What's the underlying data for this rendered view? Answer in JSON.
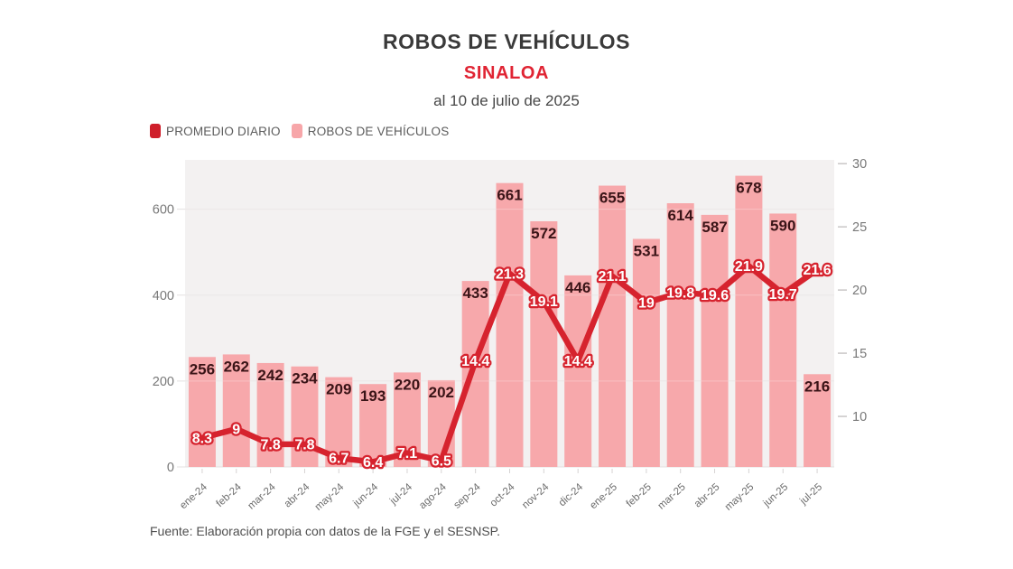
{
  "header": {
    "title": "ROBOS DE VEHÍCULOS",
    "subtitle": "SINALOA",
    "date_note": "al 10 de julio de 2025"
  },
  "legend": {
    "items": [
      {
        "label": "PROMEDIO DIARIO",
        "color": "#cf1f2b"
      },
      {
        "label": "ROBOS DE VEHÍCULOS",
        "color": "#f7a6a9"
      }
    ]
  },
  "footer": {
    "source": "Fuente: Elaboración propia con datos de la FGE y el SESNSP."
  },
  "colors": {
    "bar_fill": "#f7a8ab",
    "line_stroke": "#d6232e",
    "bar_label": "#3a1417",
    "line_label_fill": "#ffffff",
    "axis_label": "#787878",
    "x_label": "#6b6b6b",
    "plot_background": "#f3f1f1",
    "gridline": "#e3e0e0",
    "tick_mark": "#c9c6c6",
    "subtitle_red": "#e02433"
  },
  "chart_data": {
    "type": "bar",
    "subtype": "bar-line-combo",
    "title": "ROBOS DE VEHÍCULOS",
    "subtitle": "SINALOA",
    "note": "al 10 de julio de 2025",
    "categories": [
      "ene-24",
      "feb-24",
      "mar-24",
      "abr-24",
      "may-24",
      "jun-24",
      "jul-24",
      "ago-24",
      "sep-24",
      "oct-24",
      "nov-24",
      "dic-24",
      "ene-25",
      "feb-25",
      "mar-25",
      "abr-25",
      "may-25",
      "jun-25",
      "jul-25"
    ],
    "series": [
      {
        "name": "ROBOS DE VEHÍCULOS",
        "type": "bar",
        "axis": "left",
        "color": "#f7a8ab",
        "values": [
          256,
          262,
          242,
          234,
          209,
          193,
          220,
          202,
          433,
          661,
          572,
          446,
          655,
          531,
          614,
          587,
          678,
          590,
          216
        ]
      },
      {
        "name": "PROMEDIO DIARIO",
        "type": "line",
        "axis": "right",
        "color": "#d6232e",
        "values": [
          8.3,
          9,
          7.8,
          7.8,
          6.7,
          6.4,
          7.1,
          6.5,
          14.4,
          21.3,
          19.1,
          14.4,
          21.1,
          19,
          19.8,
          19.6,
          21.9,
          19.7,
          21.6
        ]
      }
    ],
    "left_axis": {
      "ticks": [
        0,
        200,
        400,
        600
      ],
      "range": [
        0,
        715
      ],
      "gridlines": true
    },
    "right_axis": {
      "ticks": [
        10,
        15,
        20,
        25,
        30
      ],
      "range": [
        6,
        30.3
      ],
      "gridlines": false
    },
    "legend_position": "top-left",
    "xlabel": "",
    "ylabel": ""
  }
}
